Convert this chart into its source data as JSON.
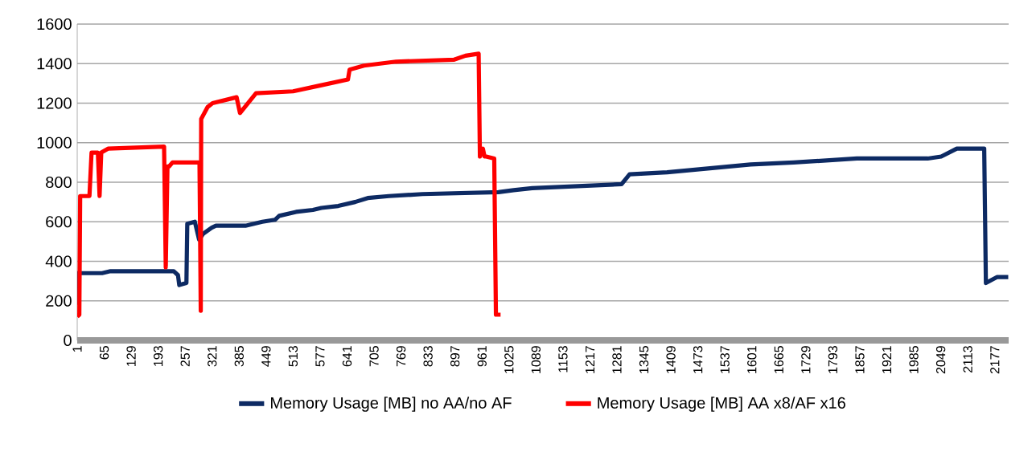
{
  "chart_data": {
    "type": "line",
    "series": [
      {
        "name": "Memory Usage [MB]  no AA/no AF",
        "color": "#0d2a63",
        "x": [
          1,
          3,
          60,
          80,
          200,
          230,
          240,
          243,
          260,
          262,
          280,
          290,
          300,
          320,
          330,
          400,
          420,
          440,
          470,
          480,
          520,
          560,
          580,
          620,
          660,
          690,
          740,
          820,
          1000,
          1036,
          1080,
          1292,
          1311,
          1400,
          1598,
          1700,
          1850,
          2018,
          2050,
          2087,
          2152,
          2156,
          2182,
          2209
        ],
        "values": [
          180,
          340,
          340,
          350,
          350,
          350,
          330,
          280,
          290,
          590,
          600,
          510,
          540,
          570,
          580,
          580,
          590,
          600,
          610,
          630,
          650,
          660,
          670,
          680,
          700,
          720,
          730,
          740,
          750,
          760,
          770,
          790,
          840,
          850,
          890,
          900,
          920,
          920,
          930,
          970,
          970,
          290,
          320,
          320
        ]
      },
      {
        "name": "Memory Usage [MB]  AA x8/AF x16",
        "color": "#ff0000",
        "x": [
          1,
          6,
          8,
          30,
          35,
          50,
          54,
          58,
          74,
          207,
          211,
          215,
          219,
          227,
          291,
          294,
          295,
          310,
          322,
          379,
          387,
          425,
          513,
          578,
          643,
          647,
          681,
          757,
          895,
          922,
          953,
          956,
          963,
          967,
          971,
          990,
          994,
          1005
        ],
        "values": [
          120,
          130,
          730,
          730,
          950,
          950,
          730,
          950,
          970,
          980,
          370,
          880,
          880,
          900,
          900,
          150,
          1120,
          1180,
          1200,
          1230,
          1150,
          1250,
          1260,
          1290,
          1320,
          1370,
          1390,
          1410,
          1420,
          1440,
          1450,
          930,
          970,
          930,
          930,
          920,
          130,
          130
        ]
      }
    ],
    "xlim": [
      1,
      2210
    ],
    "xticks": [
      1,
      65,
      129,
      193,
      257,
      321,
      385,
      449,
      513,
      577,
      641,
      705,
      769,
      833,
      897,
      961,
      1025,
      1089,
      1153,
      1217,
      1281,
      1345,
      1409,
      1473,
      1537,
      1601,
      1665,
      1729,
      1793,
      1857,
      1921,
      1985,
      2049,
      2113,
      2177
    ],
    "ylim": [
      0,
      1600
    ],
    "yticks": [
      0,
      200,
      400,
      600,
      800,
      1000,
      1200,
      1400,
      1600
    ],
    "grid": "y",
    "legend": "bottom",
    "marker": "none",
    "line_style": "solid"
  }
}
